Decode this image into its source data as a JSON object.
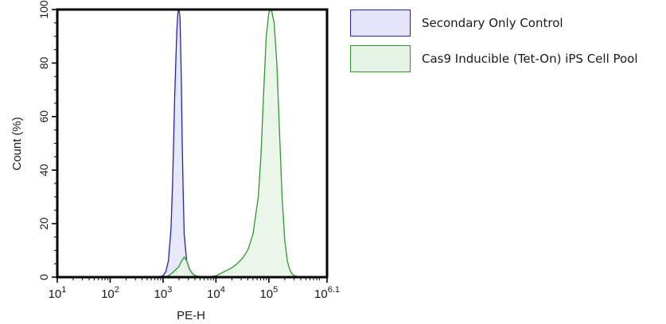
{
  "chart_data": {
    "type": "area",
    "xlabel": "PE-H",
    "ylabel": "Count  (%)",
    "x_scale": "log10",
    "xlim": [
      1,
      6.1
    ],
    "ylim": [
      0,
      100
    ],
    "x_ticks": [
      {
        "base": "10",
        "exp": "1",
        "value": 1
      },
      {
        "base": "10",
        "exp": "2",
        "value": 2
      },
      {
        "base": "10",
        "exp": "3",
        "value": 3
      },
      {
        "base": "10",
        "exp": "4",
        "value": 4
      },
      {
        "base": "10",
        "exp": "5",
        "value": 5
      },
      {
        "base": "10",
        "exp": "6.1",
        "value": 6.1
      }
    ],
    "y_ticks": [
      "0",
      "20",
      "40",
      "60",
      "80",
      "100"
    ],
    "legend_position": "right",
    "series": [
      {
        "name": "Secondary Only Control",
        "stroke": "#2222bb",
        "fill": "#e4e4fb",
        "x": [
          2.9,
          3.0,
          3.05,
          3.1,
          3.15,
          3.18,
          3.22,
          3.26,
          3.28,
          3.3,
          3.32,
          3.34,
          3.36,
          3.38,
          3.4,
          3.45,
          3.5,
          3.55,
          3.6,
          3.7
        ],
        "y": [
          0,
          0.5,
          2,
          6,
          18,
          35,
          68,
          92,
          99,
          100,
          97,
          80,
          52,
          32,
          16,
          5,
          2,
          0.8,
          0.3,
          0
        ]
      },
      {
        "name": "Cas9 Inducible (Tet-On) iPS Cell Pool",
        "stroke": "#2e9a2e",
        "fill": "#e6f4e6",
        "x": [
          3.0,
          3.1,
          3.2,
          3.3,
          3.35,
          3.4,
          3.45,
          3.5,
          3.55,
          3.6,
          3.7,
          3.8,
          3.9,
          4.0,
          4.1,
          4.2,
          4.3,
          4.4,
          4.5,
          4.6,
          4.7,
          4.8,
          4.85,
          4.9,
          4.95,
          5.0,
          5.05,
          5.1,
          5.15,
          5.2,
          5.25,
          5.3,
          5.35,
          5.4,
          5.45,
          5.5,
          5.6,
          5.7
        ],
        "y": [
          0,
          0.5,
          2,
          4,
          6,
          7.5,
          6,
          3,
          1.5,
          0.6,
          0.2,
          0.1,
          0.2,
          0.5,
          1.5,
          2.5,
          3.5,
          5,
          7,
          10,
          16,
          30,
          45,
          68,
          90,
          99,
          100,
          95,
          80,
          55,
          30,
          14,
          6,
          2.5,
          1,
          0.4,
          0.1,
          0
        ]
      }
    ]
  }
}
